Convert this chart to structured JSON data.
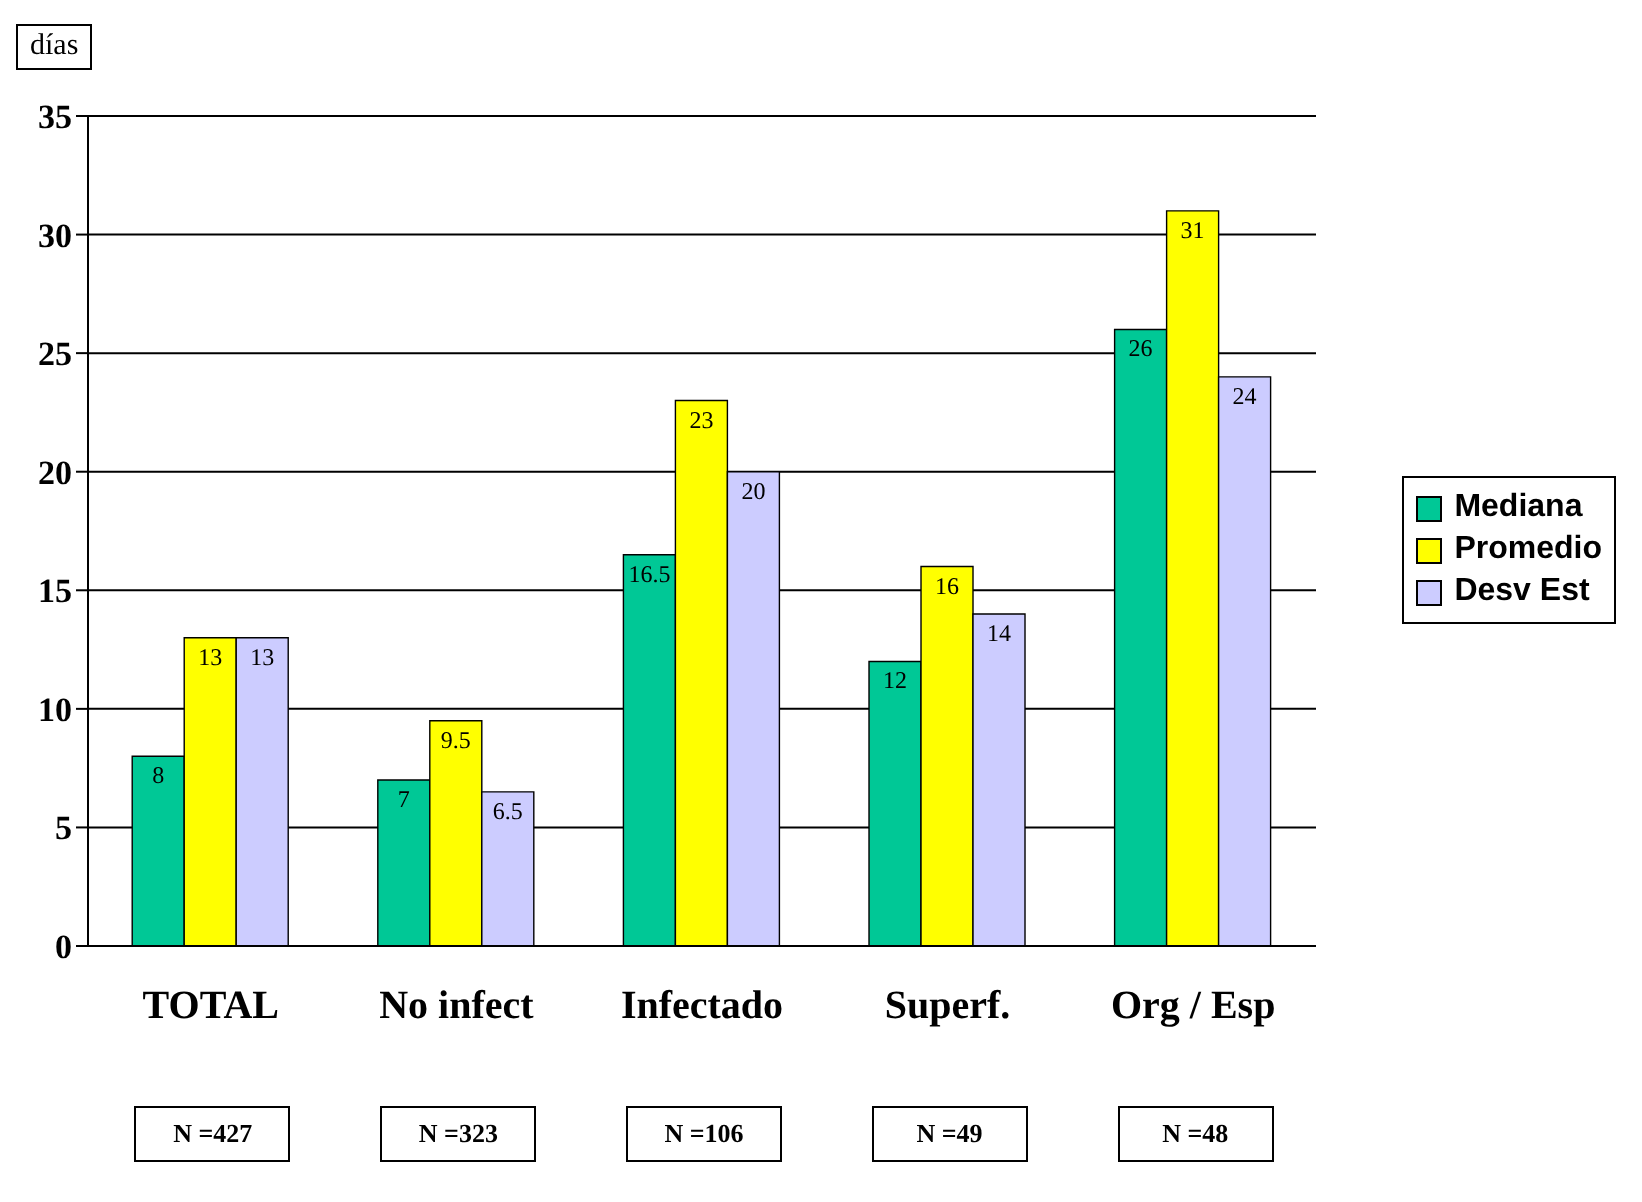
{
  "chart_data": {
    "type": "bar",
    "ylabel": "días",
    "categories": [
      "TOTAL",
      "No infect",
      "Infectado",
      "Superf.",
      "Org / Esp"
    ],
    "series": [
      {
        "name": "Mediana",
        "color": "#00c896",
        "values": [
          8,
          7,
          16.5,
          12,
          26
        ]
      },
      {
        "name": "Promedio",
        "color": "#ffff00",
        "values": [
          13,
          9.5,
          23,
          16,
          31
        ]
      },
      {
        "name": "Desv Est",
        "color": "#ccccff",
        "values": [
          13,
          6.5,
          20,
          14,
          24
        ]
      }
    ],
    "ylim": [
      0,
      35
    ],
    "yticks": [
      0,
      5,
      10,
      15,
      20,
      25,
      30,
      35
    ],
    "grid": "y",
    "legend": "right",
    "data_labels": true,
    "annotations": [
      "N =427",
      "N =323",
      "N =106",
      "N =49",
      "N =48"
    ]
  }
}
